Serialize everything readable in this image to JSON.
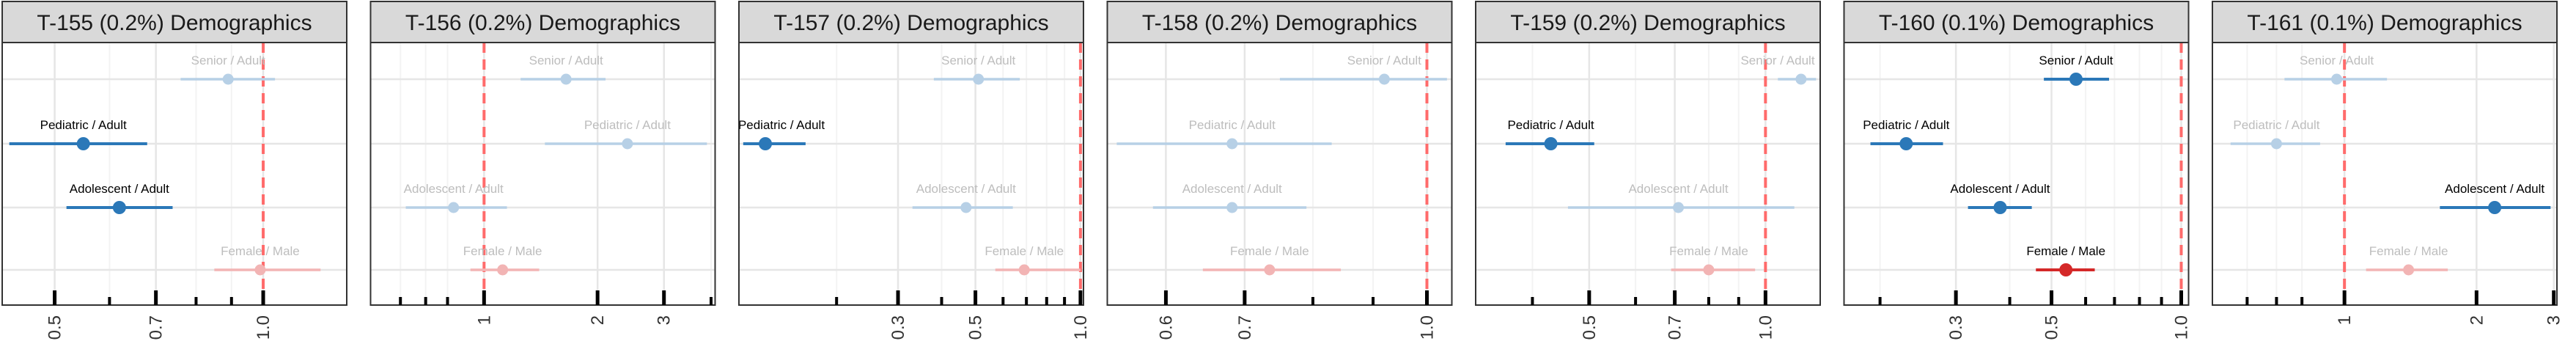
{
  "chart_data": [
    {
      "type": "forest",
      "title": "T-155 (0.2%) Demographics",
      "scale": "log",
      "xlim": [
        0.42,
        1.32
      ],
      "reference_line": 1.0,
      "major_ticks": [
        0.5,
        0.7,
        1.0
      ],
      "tick_labels": [
        "0.5",
        "0.7",
        "1.0"
      ],
      "minor_ticks": [
        0.6,
        0.8,
        0.9
      ],
      "rows": [
        {
          "label": "Senior / Adult",
          "estimate": 0.89,
          "lower": 0.76,
          "upper": 1.04,
          "highlighted": false,
          "group": "age"
        },
        {
          "label": "Pediatric / Adult",
          "estimate": 0.55,
          "lower": 0.43,
          "upper": 0.68,
          "highlighted": true,
          "group": "age"
        },
        {
          "label": "Adolescent / Adult",
          "estimate": 0.62,
          "lower": 0.52,
          "upper": 0.74,
          "highlighted": true,
          "group": "age"
        },
        {
          "label": "Female / Male",
          "estimate": 0.99,
          "lower": 0.85,
          "upper": 1.21,
          "highlighted": false,
          "group": "sex"
        }
      ]
    },
    {
      "type": "forest",
      "title": "T-156 (0.2%) Demographics",
      "scale": "log",
      "xlim": [
        0.5,
        4.1
      ],
      "reference_line": 1.0,
      "major_ticks": [
        1,
        2,
        3
      ],
      "tick_labels": [
        "1",
        "2",
        "3"
      ],
      "minor_ticks": [
        0.6,
        0.7,
        0.8,
        4
      ],
      "rows": [
        {
          "label": "Senior / Adult",
          "estimate": 1.65,
          "lower": 1.25,
          "upper": 2.1,
          "highlighted": false,
          "group": "age"
        },
        {
          "label": "Pediatric / Adult",
          "estimate": 2.4,
          "lower": 1.45,
          "upper": 3.9,
          "highlighted": false,
          "group": "age"
        },
        {
          "label": "Adolescent / Adult",
          "estimate": 0.83,
          "lower": 0.62,
          "upper": 1.15,
          "highlighted": false,
          "group": "age"
        },
        {
          "label": "Female / Male",
          "estimate": 1.12,
          "lower": 0.92,
          "upper": 1.4,
          "highlighted": false,
          "group": "sex"
        }
      ]
    },
    {
      "type": "forest",
      "title": "T-157 (0.2%) Demographics",
      "scale": "log",
      "xlim": [
        0.105,
        1.02
      ],
      "reference_line": 1.0,
      "major_ticks": [
        0.3,
        0.5,
        1.0
      ],
      "tick_labels": [
        "0.3",
        "0.5",
        "1.0"
      ],
      "minor_ticks": [
        0.2,
        0.4,
        0.6,
        0.7,
        0.8,
        0.9
      ],
      "rows": [
        {
          "label": "Senior / Adult",
          "estimate": 0.51,
          "lower": 0.38,
          "upper": 0.67,
          "highlighted": false,
          "group": "age"
        },
        {
          "label": "Pediatric / Adult",
          "estimate": 0.125,
          "lower": 0.108,
          "upper": 0.163,
          "highlighted": true,
          "group": "age"
        },
        {
          "label": "Adolescent / Adult",
          "estimate": 0.47,
          "lower": 0.33,
          "upper": 0.64,
          "highlighted": false,
          "group": "age"
        },
        {
          "label": "Female / Male",
          "estimate": 0.69,
          "lower": 0.57,
          "upper": 1.0,
          "highlighted": false,
          "group": "sex"
        }
      ]
    },
    {
      "type": "forest",
      "title": "T-158 (0.2%) Demographics",
      "scale": "log",
      "xlim": [
        0.535,
        1.05
      ],
      "reference_line": 1.0,
      "major_ticks": [
        0.6,
        0.7,
        1.0
      ],
      "tick_labels": [
        "0.6",
        "0.7",
        "1.0"
      ],
      "minor_ticks": [
        0.8,
        0.9
      ],
      "rows": [
        {
          "label": "Senior / Adult",
          "estimate": 0.92,
          "lower": 0.75,
          "upper": 1.04,
          "highlighted": false,
          "group": "age"
        },
        {
          "label": "Pediatric / Adult",
          "estimate": 0.683,
          "lower": 0.545,
          "upper": 0.83,
          "highlighted": false,
          "group": "age"
        },
        {
          "label": "Adolescent / Adult",
          "estimate": 0.683,
          "lower": 0.585,
          "upper": 0.79,
          "highlighted": false,
          "group": "age"
        },
        {
          "label": "Female / Male",
          "estimate": 0.735,
          "lower": 0.645,
          "upper": 0.845,
          "highlighted": false,
          "group": "sex"
        }
      ]
    },
    {
      "type": "forest",
      "title": "T-159 (0.2%) Demographics",
      "scale": "log",
      "xlim": [
        0.32,
        1.24
      ],
      "reference_line": 1.0,
      "major_ticks": [
        0.5,
        0.7,
        1.0
      ],
      "tick_labels": [
        "0.5",
        "0.7",
        "1.0"
      ],
      "minor_ticks": [
        0.4,
        0.6,
        0.8,
        0.9
      ],
      "rows": [
        {
          "label": "Senior / Adult",
          "estimate": 1.15,
          "lower": 1.05,
          "upper": 1.22,
          "highlighted": false,
          "group": "age"
        },
        {
          "label": "Pediatric / Adult",
          "estimate": 0.43,
          "lower": 0.36,
          "upper": 0.51,
          "highlighted": true,
          "group": "age"
        },
        {
          "label": "Adolescent / Adult",
          "estimate": 0.71,
          "lower": 0.46,
          "upper": 1.12,
          "highlighted": false,
          "group": "age"
        },
        {
          "label": "Female / Male",
          "estimate": 0.8,
          "lower": 0.69,
          "upper": 0.96,
          "highlighted": false,
          "group": "sex"
        }
      ]
    },
    {
      "type": "forest",
      "title": "T-160 (0.1%) Demographics",
      "scale": "log",
      "xlim": [
        0.165,
        1.04
      ],
      "reference_line": 1.0,
      "major_ticks": [
        0.3,
        0.5,
        1.0
      ],
      "tick_labels": [
        "0.3",
        "0.5",
        "1.0"
      ],
      "minor_ticks": [
        0.2,
        0.4,
        0.6,
        0.7,
        0.8,
        0.9
      ],
      "rows": [
        {
          "label": "Senior / Adult",
          "estimate": 0.57,
          "lower": 0.48,
          "upper": 0.68,
          "highlighted": true,
          "group": "age"
        },
        {
          "label": "Pediatric / Adult",
          "estimate": 0.23,
          "lower": 0.19,
          "upper": 0.28,
          "highlighted": true,
          "group": "age"
        },
        {
          "label": "Adolescent / Adult",
          "estimate": 0.38,
          "lower": 0.32,
          "upper": 0.45,
          "highlighted": true,
          "group": "age"
        },
        {
          "label": "Female / Male",
          "estimate": 0.54,
          "lower": 0.46,
          "upper": 0.63,
          "highlighted": true,
          "group": "sex"
        }
      ]
    },
    {
      "type": "forest",
      "title": "T-161 (0.1%) Demographics",
      "scale": "log",
      "xlim": [
        0.5,
        3.05
      ],
      "reference_line": 1.0,
      "major_ticks": [
        1,
        2,
        3
      ],
      "tick_labels": [
        "1",
        "2",
        "3"
      ],
      "minor_ticks": [
        0.6,
        0.7,
        0.8
      ],
      "rows": [
        {
          "label": "Senior / Adult",
          "estimate": 0.96,
          "lower": 0.73,
          "upper": 1.25,
          "highlighted": false,
          "group": "age"
        },
        {
          "label": "Pediatric / Adult",
          "estimate": 0.7,
          "lower": 0.55,
          "upper": 0.88,
          "highlighted": false,
          "group": "age"
        },
        {
          "label": "Adolescent / Adult",
          "estimate": 2.2,
          "lower": 1.65,
          "upper": 2.95,
          "highlighted": true,
          "group": "age"
        },
        {
          "label": "Female / Male",
          "estimate": 1.4,
          "lower": 1.12,
          "upper": 1.72,
          "highlighted": false,
          "group": "sex"
        }
      ]
    }
  ],
  "colors": {
    "age": "#2b78b8",
    "age_faded": "#b7d0e6",
    "sex": "#d42828",
    "sex_faded": "#f2b4b4",
    "label_faded": "#bdbdbd",
    "label_strong": "#000000",
    "reference": "#ff6b6b",
    "strip_fill": "#d9d9d9",
    "grid_major": "#e6e6e6",
    "grid_minor": "#f3f3f3",
    "panel_border": "#333333"
  }
}
